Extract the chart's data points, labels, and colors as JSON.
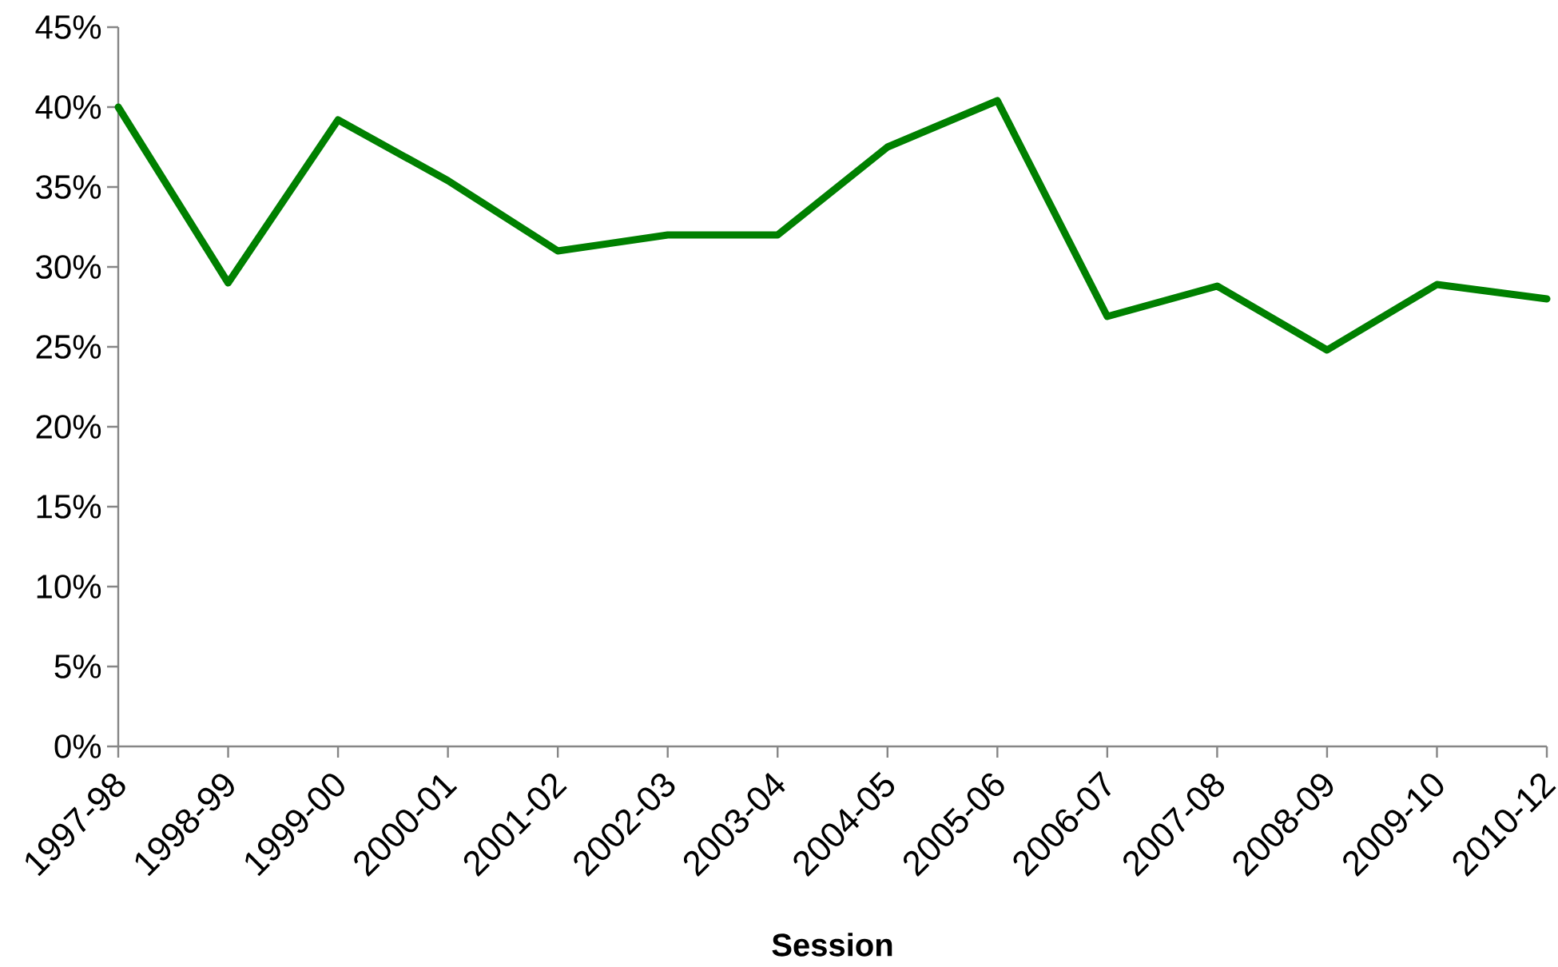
{
  "chart_data": {
    "type": "line",
    "xlabel": "Session",
    "categories": [
      "1997-98",
      "1998-99",
      "1999-00",
      "2000-01",
      "2001-02",
      "2002-03",
      "2003-04",
      "2004-05",
      "2005-06",
      "2006-07",
      "2007-08",
      "2008-09",
      "2009-10",
      "2010-12"
    ],
    "values": [
      40.0,
      29.0,
      39.2,
      35.4,
      31.0,
      32.0,
      32.0,
      37.5,
      40.4,
      26.9,
      28.8,
      24.8,
      28.9,
      28.0
    ],
    "color": "#008000",
    "marker": "none",
    "line_style": "solid",
    "ylim": [
      0,
      45
    ],
    "yticks": [
      {
        "value": 0,
        "label": "0%"
      },
      {
        "value": 5,
        "label": "5%"
      },
      {
        "value": 10,
        "label": "10%"
      },
      {
        "value": 15,
        "label": "15%"
      },
      {
        "value": 20,
        "label": "20%"
      },
      {
        "value": 25,
        "label": "25%"
      },
      {
        "value": 30,
        "label": "30%"
      },
      {
        "value": 35,
        "label": "35%"
      },
      {
        "value": 40,
        "label": "40%"
      },
      {
        "value": 45,
        "label": "45%"
      }
    ]
  }
}
